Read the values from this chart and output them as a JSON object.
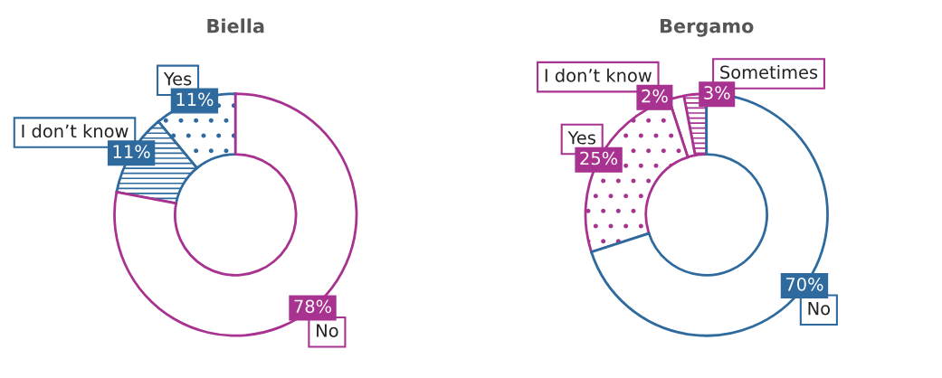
{
  "chart_data": [
    {
      "type": "donut",
      "title": "Biella",
      "categories": [
        "Yes",
        "I don’t know",
        "No"
      ],
      "values": [
        11,
        11,
        78
      ],
      "colors": [
        "#2e6a9e",
        "#2e6a9e",
        "#a8328f"
      ],
      "value_labels": [
        "11%",
        "11%",
        "78%"
      ]
    },
    {
      "type": "donut",
      "title": "Bergamo",
      "categories": [
        "Sometimes",
        "I don’t know",
        "Yes",
        "No"
      ],
      "values": [
        3,
        2,
        25,
        70
      ],
      "colors": [
        "#a8328f",
        "#a8328f",
        "#a8328f",
        "#2e6a9e"
      ],
      "value_labels": [
        "3%",
        "2%",
        "25%",
        "70%"
      ]
    }
  ]
}
